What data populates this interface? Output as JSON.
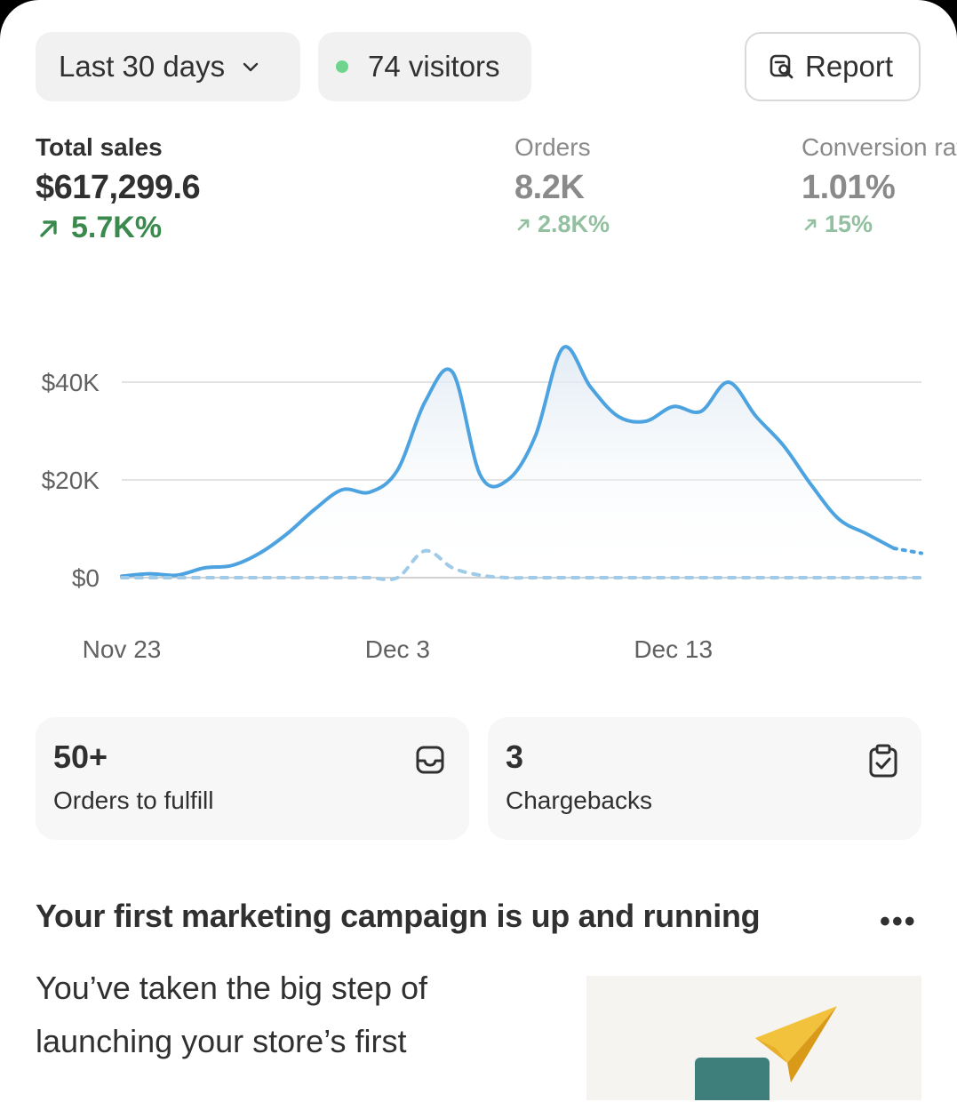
{
  "filters": {
    "date_range": "Last 30 days",
    "visitors": "74 visitors",
    "report_label": "Report"
  },
  "metrics": [
    {
      "label": "Total sales",
      "value": "$617,299.6",
      "delta": "5.7K%"
    },
    {
      "label": "Orders",
      "value": "8.2K",
      "delta": "2.8K%"
    },
    {
      "label": "Conversion rate",
      "value": "1.01%",
      "delta": "15%"
    }
  ],
  "colors": {
    "primary_line": "#4da3e0",
    "comparison_line": "#9fcbe8",
    "positive": "#3a8a4e",
    "live_dot": "#6fd58e"
  },
  "chart_data": {
    "type": "line",
    "x": [
      "Nov 23",
      "Nov 24",
      "Nov 25",
      "Nov 26",
      "Nov 27",
      "Nov 28",
      "Nov 29",
      "Nov 30",
      "Dec 1",
      "Dec 2",
      "Dec 3",
      "Dec 4",
      "Dec 5",
      "Dec 6",
      "Dec 7",
      "Dec 8",
      "Dec 9",
      "Dec 10",
      "Dec 11",
      "Dec 12",
      "Dec 13",
      "Dec 14",
      "Dec 15",
      "Dec 16",
      "Dec 17",
      "Dec 18",
      "Dec 19",
      "Dec 20",
      "Dec 21",
      "Dec 22"
    ],
    "x_tick_labels": [
      "Nov 23",
      "Dec 3",
      "Dec 13"
    ],
    "y_tick_labels": [
      "$0",
      "$20K",
      "$40K"
    ],
    "ylim": [
      0,
      48000
    ],
    "series": [
      {
        "style": "solid",
        "values": [
          300,
          800,
          500,
          2000,
          2500,
          5000,
          9000,
          14000,
          18000,
          17500,
          22000,
          36000,
          42000,
          21000,
          20000,
          29000,
          47000,
          39000,
          33000,
          32000,
          35000,
          34000,
          40000,
          33000,
          27000,
          19000,
          12000,
          9000,
          6000,
          5000
        ]
      },
      {
        "style": "dashed",
        "values": [
          0,
          0,
          0,
          0,
          0,
          0,
          0,
          0,
          0,
          0,
          0,
          5500,
          2000,
          500,
          0,
          0,
          0,
          0,
          0,
          0,
          0,
          0,
          0,
          0,
          0,
          0,
          0,
          0,
          0,
          0
        ]
      }
    ],
    "grid": true,
    "legend": "none"
  },
  "cards": [
    {
      "count": "50+",
      "label": "Orders to fulfill",
      "icon": "inbox-icon"
    },
    {
      "count": "3",
      "label": "Chargebacks",
      "icon": "clipboard-check-icon"
    }
  ],
  "campaign": {
    "title": "Your first marketing campaign is up and running",
    "more_label": "•••",
    "body": "You’ve taken the big step of launching your store’s first"
  }
}
